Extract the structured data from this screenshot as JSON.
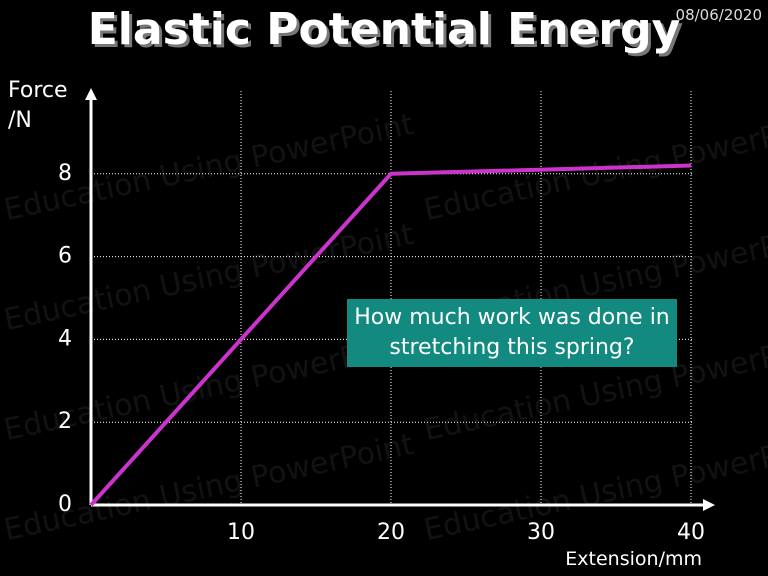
{
  "chart_data": {
    "type": "line",
    "title": "Elastic Potential Energy",
    "date": "08/06/2020",
    "watermark": "Education Using PowerPoint",
    "y_label": "Force /N",
    "x_label": "Extension/mm",
    "annotation": "How much work was done in stretching this spring?",
    "x": [
      0,
      20,
      40
    ],
    "values": [
      0,
      8,
      8.2
    ],
    "color": "#cc33cc",
    "xlim": [
      0,
      41.4
    ],
    "ylim": [
      0,
      10
    ],
    "xticks": [
      10,
      20,
      30,
      40
    ],
    "yticks": [
      0,
      2,
      4,
      6,
      8
    ],
    "grid": true
  }
}
